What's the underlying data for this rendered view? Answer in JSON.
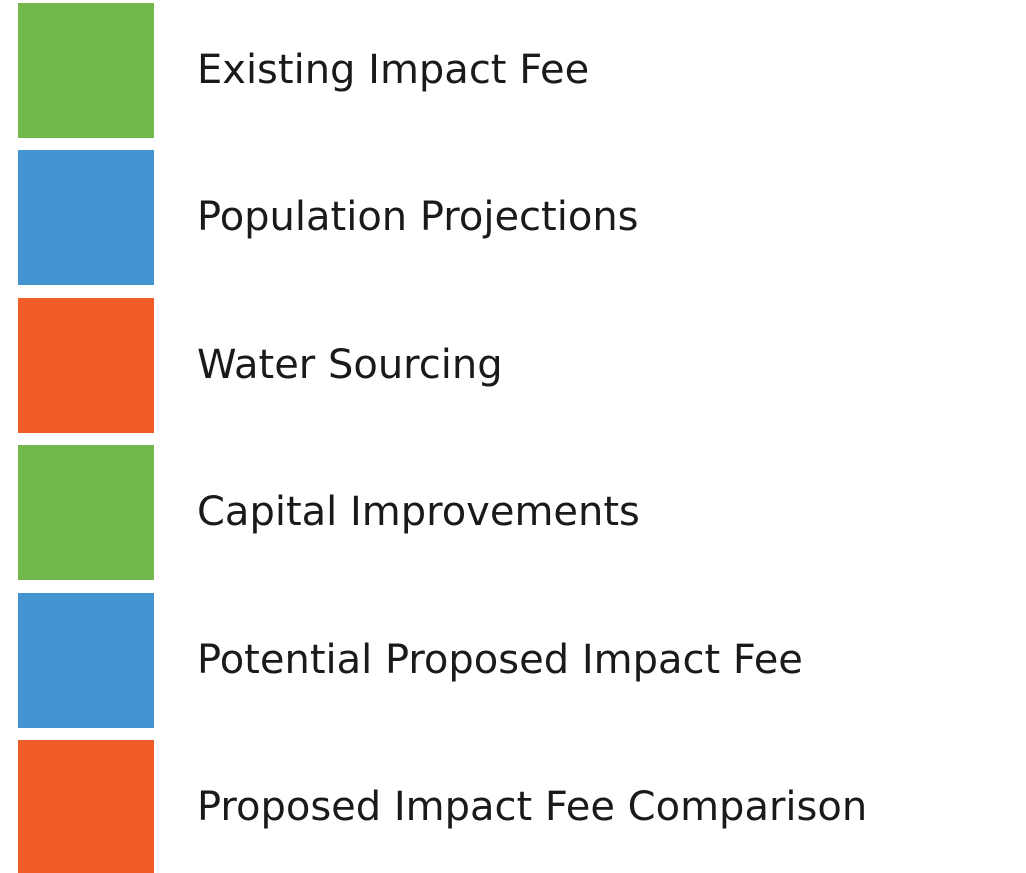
{
  "items": [
    {
      "label": "Existing Impact Fee",
      "color": "#72b84c"
    },
    {
      "label": "Population Projections",
      "color": "#4394d1"
    },
    {
      "label": "Water Sourcing",
      "color": "#f15d28"
    },
    {
      "label": "Capital Improvements",
      "color": "#72b84c"
    },
    {
      "label": "Potential Proposed Impact Fee",
      "color": "#4394d1"
    },
    {
      "label": "Proposed Impact Fee Comparison",
      "color": "#f15d28"
    }
  ]
}
